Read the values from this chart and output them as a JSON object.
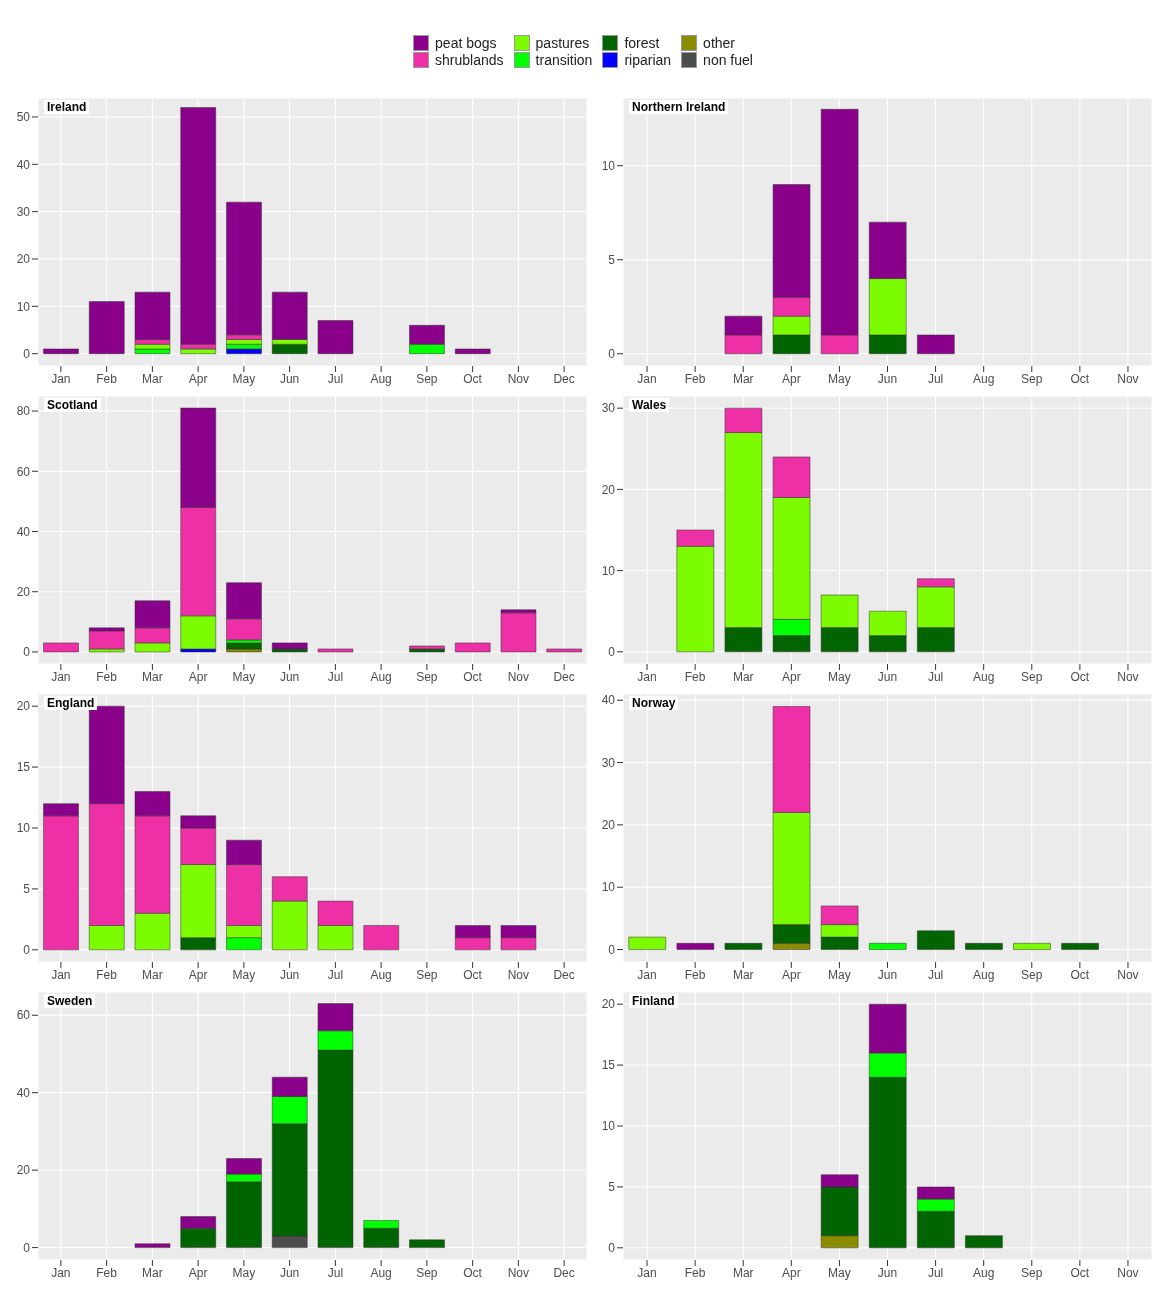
{
  "chart_data": [
    {
      "type": "bar",
      "title": "Ireland",
      "stacked": true,
      "grid": true,
      "legend": "top",
      "categories": [
        "Jan",
        "Feb",
        "Mar",
        "Apr",
        "May",
        "Jun",
        "Jul",
        "Aug",
        "Sep",
        "Oct",
        "Nov",
        "Dec"
      ],
      "ylim": [
        -2.6,
        54
      ],
      "yticks": [
        0,
        10,
        20,
        30,
        40,
        50
      ],
      "series": [
        {
          "name": "non fuel",
          "color": "#4d4d4d",
          "values": [
            0,
            0,
            0,
            0,
            0,
            0,
            0,
            0,
            0,
            0,
            0,
            0
          ]
        },
        {
          "name": "other",
          "color": "#8b8b00",
          "values": [
            0,
            0,
            0,
            0,
            0,
            0,
            0,
            0,
            0,
            0,
            0,
            0
          ]
        },
        {
          "name": "riparian",
          "color": "#0000ff",
          "values": [
            0,
            0,
            0,
            0,
            1,
            0,
            0,
            0,
            0,
            0,
            0,
            0
          ]
        },
        {
          "name": "forest",
          "color": "#006400",
          "values": [
            0,
            0,
            0,
            0,
            0,
            2,
            0,
            0,
            0,
            0,
            0,
            0
          ]
        },
        {
          "name": "transition",
          "color": "#00ff00",
          "values": [
            0,
            0,
            1,
            0,
            1,
            0,
            0,
            0,
            2,
            0,
            0,
            0
          ]
        },
        {
          "name": "pastures",
          "color": "#7cfc00",
          "values": [
            0,
            0,
            1,
            1,
            1,
            1,
            0,
            0,
            0,
            0,
            0,
            0
          ]
        },
        {
          "name": "shrublands",
          "color": "#ee30a7",
          "values": [
            0,
            0,
            1,
            1,
            1,
            0,
            0,
            0,
            0,
            0,
            0,
            0
          ]
        },
        {
          "name": "peat bogs",
          "color": "#8b008b",
          "values": [
            1,
            11,
            10,
            50,
            28,
            10,
            7,
            0,
            4,
            1,
            0,
            0
          ]
        }
      ]
    },
    {
      "type": "bar",
      "title": "Northern Ireland",
      "stacked": true,
      "grid": true,
      "categories": [
        "Jan",
        "Feb",
        "Mar",
        "Apr",
        "May",
        "Jun",
        "Jul",
        "Aug",
        "Sep",
        "Oct",
        "Nov"
      ],
      "ylim": [
        -0.65,
        13.6
      ],
      "yticks": [
        0,
        5,
        10
      ],
      "series": [
        {
          "color": "#4d4d4d",
          "values": [
            0,
            0,
            0,
            0,
            0,
            0,
            0,
            0,
            0,
            0,
            0
          ]
        },
        {
          "color": "#8b8b00",
          "values": [
            0,
            0,
            0,
            0,
            0,
            0,
            0,
            0,
            0,
            0,
            0
          ]
        },
        {
          "color": "#0000ff",
          "values": [
            0,
            0,
            0,
            0,
            0,
            0,
            0,
            0,
            0,
            0,
            0
          ]
        },
        {
          "color": "#006400",
          "values": [
            0,
            0,
            0,
            1,
            0,
            1,
            0,
            0,
            0,
            0,
            0
          ]
        },
        {
          "color": "#00ff00",
          "values": [
            0,
            0,
            0,
            0,
            0,
            0,
            0,
            0,
            0,
            0,
            0
          ]
        },
        {
          "color": "#7cfc00",
          "values": [
            0,
            0,
            0,
            1,
            0,
            3,
            0,
            0,
            0,
            0,
            0
          ]
        },
        {
          "color": "#ee30a7",
          "values": [
            0,
            0,
            1,
            1,
            1,
            0,
            0,
            0,
            0,
            0,
            0
          ]
        },
        {
          "color": "#8b008b",
          "values": [
            0,
            0,
            1,
            6,
            12,
            3,
            1,
            0,
            0,
            0,
            0
          ]
        }
      ]
    },
    {
      "type": "bar",
      "title": "Scotland",
      "stacked": true,
      "grid": true,
      "categories": [
        "Jan",
        "Feb",
        "Mar",
        "Apr",
        "May",
        "Jun",
        "Jul",
        "Aug",
        "Sep",
        "Oct",
        "Nov",
        "Dec"
      ],
      "ylim": [
        -4,
        85
      ],
      "yticks": [
        0,
        20,
        40,
        60,
        80
      ],
      "series": [
        {
          "color": "#4d4d4d",
          "values": [
            0,
            0,
            0,
            0,
            0,
            0,
            0,
            0,
            0,
            0,
            0,
            0
          ]
        },
        {
          "color": "#8b8b00",
          "values": [
            0,
            0,
            0,
            0,
            1,
            0,
            0,
            0,
            0,
            0,
            0,
            0
          ]
        },
        {
          "color": "#0000ff",
          "values": [
            0,
            0,
            0,
            1,
            0,
            0,
            0,
            0,
            0,
            0,
            0,
            0
          ]
        },
        {
          "color": "#006400",
          "values": [
            0,
            0,
            0,
            0,
            2,
            1,
            0,
            0,
            1,
            0,
            0,
            0
          ]
        },
        {
          "color": "#00ff00",
          "values": [
            0,
            0,
            0,
            0,
            1,
            0,
            0,
            0,
            0,
            0,
            0,
            0
          ]
        },
        {
          "color": "#7cfc00",
          "values": [
            0,
            1,
            3,
            11,
            0,
            0,
            0,
            0,
            0,
            0,
            0,
            0
          ]
        },
        {
          "color": "#ee30a7",
          "values": [
            3,
            6,
            5,
            36,
            7,
            0,
            1,
            0,
            1,
            3,
            13,
            1
          ]
        },
        {
          "color": "#8b008b",
          "values": [
            0,
            1,
            9,
            33,
            12,
            2,
            0,
            0,
            0,
            0,
            1,
            0
          ]
        }
      ]
    },
    {
      "type": "bar",
      "title": "Wales",
      "stacked": true,
      "grid": true,
      "categories": [
        "Jan",
        "Feb",
        "Mar",
        "Apr",
        "May",
        "Jun",
        "Jul",
        "Aug",
        "Sep",
        "Oct",
        "Nov"
      ],
      "ylim": [
        -1.5,
        31.5
      ],
      "yticks": [
        0,
        10,
        20,
        30
      ],
      "series": [
        {
          "color": "#4d4d4d",
          "values": [
            0,
            0,
            0,
            0,
            0,
            0,
            0,
            0,
            0,
            0,
            0
          ]
        },
        {
          "color": "#8b8b00",
          "values": [
            0,
            0,
            0,
            0,
            0,
            0,
            0,
            0,
            0,
            0,
            0
          ]
        },
        {
          "color": "#0000ff",
          "values": [
            0,
            0,
            0,
            0,
            0,
            0,
            0,
            0,
            0,
            0,
            0
          ]
        },
        {
          "color": "#006400",
          "values": [
            0,
            0,
            3,
            2,
            3,
            2,
            3,
            0,
            0,
            0,
            0
          ]
        },
        {
          "color": "#00ff00",
          "values": [
            0,
            0,
            0,
            2,
            0,
            0,
            0,
            0,
            0,
            0,
            0
          ]
        },
        {
          "color": "#7cfc00",
          "values": [
            0,
            13,
            24,
            15,
            4,
            3,
            5,
            0,
            0,
            0,
            0
          ]
        },
        {
          "color": "#ee30a7",
          "values": [
            0,
            2,
            3,
            5,
            0,
            0,
            1,
            0,
            0,
            0,
            0
          ]
        },
        {
          "color": "#8b008b",
          "values": [
            0,
            0,
            0,
            0,
            0,
            0,
            0,
            0,
            0,
            0,
            0
          ]
        }
      ]
    },
    {
      "type": "bar",
      "title": "England",
      "stacked": true,
      "grid": true,
      "categories": [
        "Jan",
        "Feb",
        "Mar",
        "Apr",
        "May",
        "Jun",
        "Jul",
        "Aug",
        "Sep",
        "Oct",
        "Nov",
        "Dec"
      ],
      "ylim": [
        -1,
        21
      ],
      "yticks": [
        0,
        5,
        10,
        15,
        20
      ],
      "series": [
        {
          "color": "#4d4d4d",
          "values": [
            0,
            0,
            0,
            0,
            0,
            0,
            0,
            0,
            0,
            0,
            0,
            0
          ]
        },
        {
          "color": "#8b8b00",
          "values": [
            0,
            0,
            0,
            0,
            0,
            0,
            0,
            0,
            0,
            0,
            0,
            0
          ]
        },
        {
          "color": "#0000ff",
          "values": [
            0,
            0,
            0,
            0,
            0,
            0,
            0,
            0,
            0,
            0,
            0,
            0
          ]
        },
        {
          "color": "#006400",
          "values": [
            0,
            0,
            0,
            1,
            0,
            0,
            0,
            0,
            0,
            0,
            0,
            0
          ]
        },
        {
          "color": "#00ff00",
          "values": [
            0,
            0,
            0,
            0,
            1,
            0,
            0,
            0,
            0,
            0,
            0,
            0
          ]
        },
        {
          "color": "#7cfc00",
          "values": [
            0,
            2,
            3,
            6,
            1,
            4,
            2,
            0,
            0,
            0,
            0,
            0
          ]
        },
        {
          "color": "#ee30a7",
          "values": [
            11,
            10,
            8,
            3,
            5,
            2,
            2,
            2,
            0,
            1,
            1,
            0
          ]
        },
        {
          "color": "#8b008b",
          "values": [
            1,
            8,
            2,
            1,
            2,
            0,
            0,
            0,
            0,
            1,
            1,
            0
          ]
        }
      ]
    },
    {
      "type": "bar",
      "title": "Norway",
      "stacked": true,
      "grid": true,
      "categories": [
        "Jan",
        "Feb",
        "Mar",
        "Apr",
        "May",
        "Jun",
        "Jul",
        "Aug",
        "Sep",
        "Oct",
        "Nov"
      ],
      "ylim": [
        -2,
        41
      ],
      "yticks": [
        0,
        10,
        20,
        30,
        40
      ],
      "series": [
        {
          "color": "#4d4d4d",
          "values": [
            0,
            0,
            0,
            0,
            0,
            0,
            0,
            0,
            0,
            0,
            0
          ]
        },
        {
          "color": "#8b8b00",
          "values": [
            0,
            0,
            0,
            1,
            0,
            0,
            0,
            0,
            0,
            0,
            0
          ]
        },
        {
          "color": "#0000ff",
          "values": [
            0,
            0,
            0,
            0,
            0,
            0,
            0,
            0,
            0,
            0,
            0
          ]
        },
        {
          "color": "#006400",
          "values": [
            0,
            0,
            1,
            3,
            2,
            0,
            3,
            1,
            0,
            1,
            0
          ]
        },
        {
          "color": "#00ff00",
          "values": [
            0,
            0,
            0,
            0,
            0,
            1,
            0,
            0,
            0,
            0,
            0
          ]
        },
        {
          "color": "#7cfc00",
          "values": [
            2,
            0,
            0,
            18,
            2,
            0,
            0,
            0,
            1,
            0,
            0
          ]
        },
        {
          "color": "#ee30a7",
          "values": [
            0,
            0,
            0,
            17,
            3,
            0,
            0,
            0,
            0,
            0,
            0
          ]
        },
        {
          "color": "#8b008b",
          "values": [
            0,
            1,
            0,
            0,
            0,
            0,
            0,
            0,
            0,
            0,
            0
          ]
        }
      ]
    },
    {
      "type": "bar",
      "title": "Sweden",
      "stacked": true,
      "grid": true,
      "categories": [
        "Jan",
        "Feb",
        "Mar",
        "Apr",
        "May",
        "Jun",
        "Jul",
        "Aug",
        "Sep",
        "Oct",
        "Nov",
        "Dec"
      ],
      "ylim": [
        -3.2,
        66
      ],
      "yticks": [
        0,
        20,
        40,
        60
      ],
      "series": [
        {
          "color": "#4d4d4d",
          "values": [
            0,
            0,
            0,
            0,
            0,
            3,
            0,
            0,
            0,
            0,
            0,
            0
          ]
        },
        {
          "color": "#8b8b00",
          "values": [
            0,
            0,
            0,
            0,
            0,
            0,
            0,
            0,
            0,
            0,
            0,
            0
          ]
        },
        {
          "color": "#0000ff",
          "values": [
            0,
            0,
            0,
            0,
            0,
            0,
            0,
            0,
            0,
            0,
            0,
            0
          ]
        },
        {
          "color": "#006400",
          "values": [
            0,
            0,
            0,
            5,
            17,
            29,
            51,
            5,
            2,
            0,
            0,
            0
          ]
        },
        {
          "color": "#00ff00",
          "values": [
            0,
            0,
            0,
            0,
            2,
            7,
            5,
            2,
            0,
            0,
            0,
            0
          ]
        },
        {
          "color": "#7cfc00",
          "values": [
            0,
            0,
            0,
            0,
            0,
            0,
            0,
            0,
            0,
            0,
            0,
            0
          ]
        },
        {
          "color": "#ee30a7",
          "values": [
            0,
            0,
            0,
            0,
            0,
            0,
            0,
            0,
            0,
            0,
            0,
            0
          ]
        },
        {
          "color": "#8b008b",
          "values": [
            0,
            0,
            1,
            3,
            4,
            5,
            7,
            0,
            0,
            0,
            0,
            0
          ]
        }
      ]
    },
    {
      "type": "bar",
      "title": "Finland",
      "stacked": true,
      "grid": true,
      "categories": [
        "Jan",
        "Feb",
        "Mar",
        "Apr",
        "May",
        "Jun",
        "Jul",
        "Aug",
        "Sep",
        "Oct",
        "Nov"
      ],
      "ylim": [
        -1,
        21
      ],
      "yticks": [
        0,
        5,
        10,
        15,
        20
      ],
      "series": [
        {
          "color": "#4d4d4d",
          "values": [
            0,
            0,
            0,
            0,
            0,
            0,
            0,
            0,
            0,
            0,
            0
          ]
        },
        {
          "color": "#8b8b00",
          "values": [
            0,
            0,
            0,
            0,
            1,
            0,
            0,
            0,
            0,
            0,
            0
          ]
        },
        {
          "color": "#0000ff",
          "values": [
            0,
            0,
            0,
            0,
            0,
            0,
            0,
            0,
            0,
            0,
            0
          ]
        },
        {
          "color": "#006400",
          "values": [
            0,
            0,
            0,
            0,
            4,
            14,
            3,
            1,
            0,
            0,
            0
          ]
        },
        {
          "color": "#00ff00",
          "values": [
            0,
            0,
            0,
            0,
            0,
            2,
            1,
            0,
            0,
            0,
            0
          ]
        },
        {
          "color": "#7cfc00",
          "values": [
            0,
            0,
            0,
            0,
            0,
            0,
            0,
            0,
            0,
            0,
            0
          ]
        },
        {
          "color": "#ee30a7",
          "values": [
            0,
            0,
            0,
            0,
            0,
            0,
            0,
            0,
            0,
            0,
            0
          ]
        },
        {
          "color": "#8b008b",
          "values": [
            0,
            0,
            0,
            0,
            1,
            4,
            1,
            0,
            0,
            0,
            0
          ]
        }
      ]
    }
  ]
}
